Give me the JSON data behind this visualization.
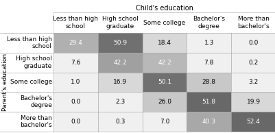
{
  "title": "Child's education",
  "ylabel": "Parent's education",
  "col_headers": [
    "Less than high\nschool",
    "High school\ngraduate",
    "Some college",
    "Bachelor's\ndegree",
    "More than\nbachelor's"
  ],
  "row_headers": [
    "Less than high\nschool",
    "High school\ngraduate",
    "Some college",
    "Bachelor's\ndegree",
    "More than\nbachelor's"
  ],
  "values": [
    [
      29.4,
      50.9,
      18.4,
      1.3,
      0.0
    ],
    [
      7.6,
      42.2,
      42.2,
      7.8,
      0.2
    ],
    [
      1.0,
      16.9,
      50.1,
      28.8,
      3.2
    ],
    [
      0.0,
      2.3,
      26.0,
      51.8,
      19.9
    ],
    [
      0.0,
      0.3,
      7.0,
      40.3,
      52.4
    ]
  ],
  "cell_colors": [
    [
      "#b0b0b0",
      "#707070",
      "#d8d8d8",
      "#f0f0f0",
      "#f0f0f0"
    ],
    [
      "#f0f0f0",
      "#a0a0a0",
      "#b8b8b8",
      "#f0f0f0",
      "#f0f0f0"
    ],
    [
      "#f0f0f0",
      "#d8d8d8",
      "#707070",
      "#c8c8c8",
      "#f0f0f0"
    ],
    [
      "#f0f0f0",
      "#f0f0f0",
      "#c8c8c8",
      "#686868",
      "#d8d8d8"
    ],
    [
      "#f0f0f0",
      "#f0f0f0",
      "#f0f0f0",
      "#a8a8a8",
      "#686868"
    ]
  ],
  "text_colors": [
    [
      "#ffffff",
      "#ffffff",
      "#000000",
      "#000000",
      "#000000"
    ],
    [
      "#000000",
      "#ffffff",
      "#ffffff",
      "#000000",
      "#000000"
    ],
    [
      "#000000",
      "#000000",
      "#ffffff",
      "#000000",
      "#000000"
    ],
    [
      "#000000",
      "#000000",
      "#000000",
      "#ffffff",
      "#000000"
    ],
    [
      "#000000",
      "#000000",
      "#000000",
      "#ffffff",
      "#ffffff"
    ]
  ],
  "bg_color": "#ffffff",
  "title_fontsize": 7,
  "cell_fontsize": 6.5,
  "header_fontsize": 6.5,
  "row_header_fontsize": 6.5,
  "ylabel_fontsize": 6.5
}
